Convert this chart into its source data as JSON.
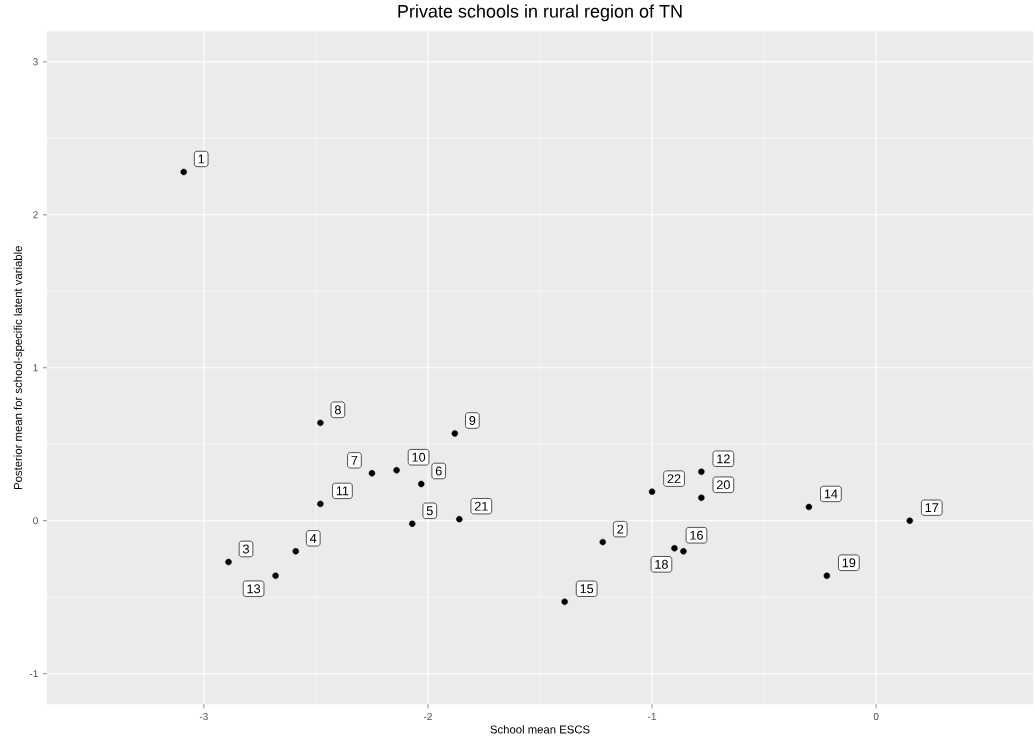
{
  "chart_data": {
    "type": "scatter",
    "title": "Private schools in rural region of TN",
    "xlabel": "School mean ESCS",
    "ylabel": "Posterior mean for school-specific latent variable",
    "x": [
      -3.09,
      -1.22,
      -2.89,
      -2.59,
      -2.07,
      -2.03,
      -2.25,
      -2.48,
      -1.88,
      -2.14,
      -2.48,
      -0.78,
      -2.68,
      -0.3,
      -1.39,
      -0.9,
      0.15,
      -0.86,
      -0.22,
      -0.78,
      -1.86,
      -1.0
    ],
    "values": [
      2.28,
      -0.14,
      -0.27,
      -0.2,
      -0.02,
      0.24,
      0.31,
      0.64,
      0.57,
      0.33,
      0.11,
      0.32,
      -0.36,
      0.09,
      -0.53,
      -0.18,
      0.0,
      -0.2,
      -0.36,
      0.15,
      0.01,
      0.19
    ],
    "color": "#000000",
    "marker": "circle",
    "grid": true,
    "xlim": [
      -3.7,
      0.7
    ],
    "ylim": [
      -1.2,
      3.2
    ],
    "xticks": [
      -3,
      -2,
      -1,
      0
    ],
    "yticks": [
      -1,
      0,
      1,
      2,
      3
    ],
    "annotations": [
      {
        "text": "1",
        "x": -3.09,
        "y": 2.28
      },
      {
        "text": "2",
        "x": -1.22,
        "y": -0.14
      },
      {
        "text": "3",
        "x": -2.89,
        "y": -0.27
      },
      {
        "text": "4",
        "x": -2.59,
        "y": -0.2
      },
      {
        "text": "5",
        "x": -2.07,
        "y": -0.02
      },
      {
        "text": "6",
        "x": -2.03,
        "y": 0.24
      },
      {
        "text": "7",
        "x": -2.25,
        "y": 0.31
      },
      {
        "text": "8",
        "x": -2.48,
        "y": 0.64
      },
      {
        "text": "9",
        "x": -1.88,
        "y": 0.57
      },
      {
        "text": "10",
        "x": -2.14,
        "y": 0.33
      },
      {
        "text": "11",
        "x": -2.48,
        "y": 0.11
      },
      {
        "text": "12",
        "x": -0.78,
        "y": 0.32
      },
      {
        "text": "13",
        "x": -2.68,
        "y": -0.36
      },
      {
        "text": "14",
        "x": -0.3,
        "y": 0.09
      },
      {
        "text": "15",
        "x": -1.39,
        "y": -0.53
      },
      {
        "text": "16",
        "x": -0.9,
        "y": -0.18
      },
      {
        "text": "17",
        "x": 0.15,
        "y": 0.0
      },
      {
        "text": "18",
        "x": -0.86,
        "y": -0.2
      },
      {
        "text": "19",
        "x": -0.22,
        "y": -0.36
      },
      {
        "text": "20",
        "x": -0.78,
        "y": 0.15
      },
      {
        "text": "21",
        "x": -1.86,
        "y": 0.01
      },
      {
        "text": "22",
        "x": -1.0,
        "y": 0.19
      }
    ]
  }
}
